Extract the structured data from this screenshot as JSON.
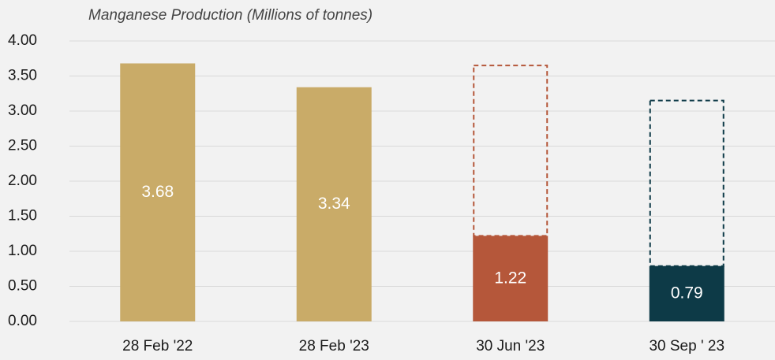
{
  "chart_data": {
    "type": "bar",
    "title": "Manganese Production (Millions of tonnes)",
    "categories": [
      "28 Feb '22",
      "28 Feb '23",
      "30 Jun '23",
      "30 Sep ' 23"
    ],
    "values": [
      3.68,
      3.34,
      1.22,
      0.79
    ],
    "colors": [
      "#c9ab68",
      "#c9ab68",
      "#b5573a",
      "#0d3a47"
    ],
    "outline_values": [
      null,
      null,
      3.65,
      3.15
    ],
    "ylim": [
      0,
      4
    ],
    "yticks": [
      {
        "value": 0,
        "label": "0.00"
      },
      {
        "value": 0.5,
        "label": "0.50"
      },
      {
        "value": 1,
        "label": "1.00"
      },
      {
        "value": 1.5,
        "label": "1.50"
      },
      {
        "value": 2,
        "label": "2.00"
      },
      {
        "value": 2.5,
        "label": "2.50"
      },
      {
        "value": 3,
        "label": "3.00"
      },
      {
        "value": 3.5,
        "label": "3.50"
      },
      {
        "value": 4,
        "label": "4.00"
      }
    ],
    "grid": true
  }
}
